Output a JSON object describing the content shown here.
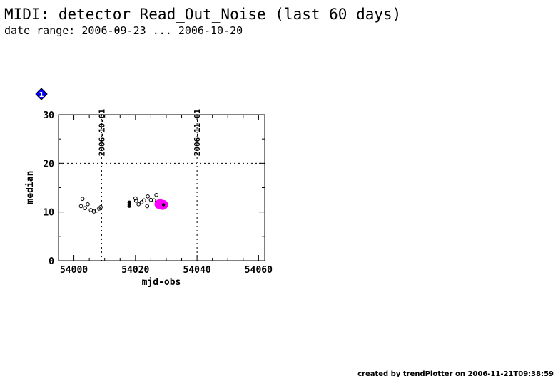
{
  "header": {
    "title": "MIDI: detector Read_Out_Noise (last 60 days)",
    "subtitle": "date range: 2006-09-23 ... 2006-10-20"
  },
  "footer": {
    "created": "created by trendPlotter on 2006-11-21T09:38:59"
  },
  "badge": {
    "label": "1",
    "color": "#0000ff"
  },
  "chart_data": {
    "type": "scatter",
    "xlabel": "mjd-obs",
    "ylabel": "median",
    "xlim": [
      53995,
      54062
    ],
    "ylim": [
      0,
      30
    ],
    "x_ticks": [
      "54000",
      "54020",
      "54040",
      "54060"
    ],
    "y_ticks": [
      "0",
      "10",
      "20",
      "30"
    ],
    "grid": "dotted at y=20 and at date markers",
    "date_markers": [
      {
        "label": "2006-10-01",
        "x": 54009
      },
      {
        "label": "2006-11-01",
        "x": 54040
      }
    ],
    "series": [
      {
        "style": "open",
        "color": "#000000",
        "points": [
          [
            54002.3,
            11.2
          ],
          [
            54002.8,
            12.7
          ],
          [
            54003.6,
            10.8
          ],
          [
            54004.5,
            11.6
          ],
          [
            54005.5,
            10.4
          ],
          [
            54006.5,
            10.1
          ],
          [
            54007.4,
            10.3
          ],
          [
            54008.2,
            10.7
          ],
          [
            54008.7,
            11.0
          ],
          [
            54020.0,
            12.8
          ],
          [
            54020.2,
            12.3
          ],
          [
            54021.0,
            11.6
          ],
          [
            54022.0,
            12.0
          ],
          [
            54022.8,
            12.4
          ],
          [
            54023.8,
            11.2
          ],
          [
            54024.0,
            13.2
          ],
          [
            54025.0,
            12.5
          ],
          [
            54026.0,
            12.4
          ],
          [
            54026.8,
            13.5
          ]
        ]
      },
      {
        "style": "filled",
        "color": "#000000",
        "points": [
          [
            54018.0,
            11.2
          ],
          [
            54018.0,
            11.6
          ],
          [
            54018.0,
            12.0
          ]
        ]
      },
      {
        "style": "highlight",
        "color": "#ff00ff",
        "points": [
          [
            54027.7,
            11.6
          ],
          [
            54028.0,
            11.7
          ],
          [
            54028.4,
            11.5
          ],
          [
            54028.8,
            11.4
          ],
          [
            54029.1,
            11.5
          ]
        ]
      }
    ]
  }
}
